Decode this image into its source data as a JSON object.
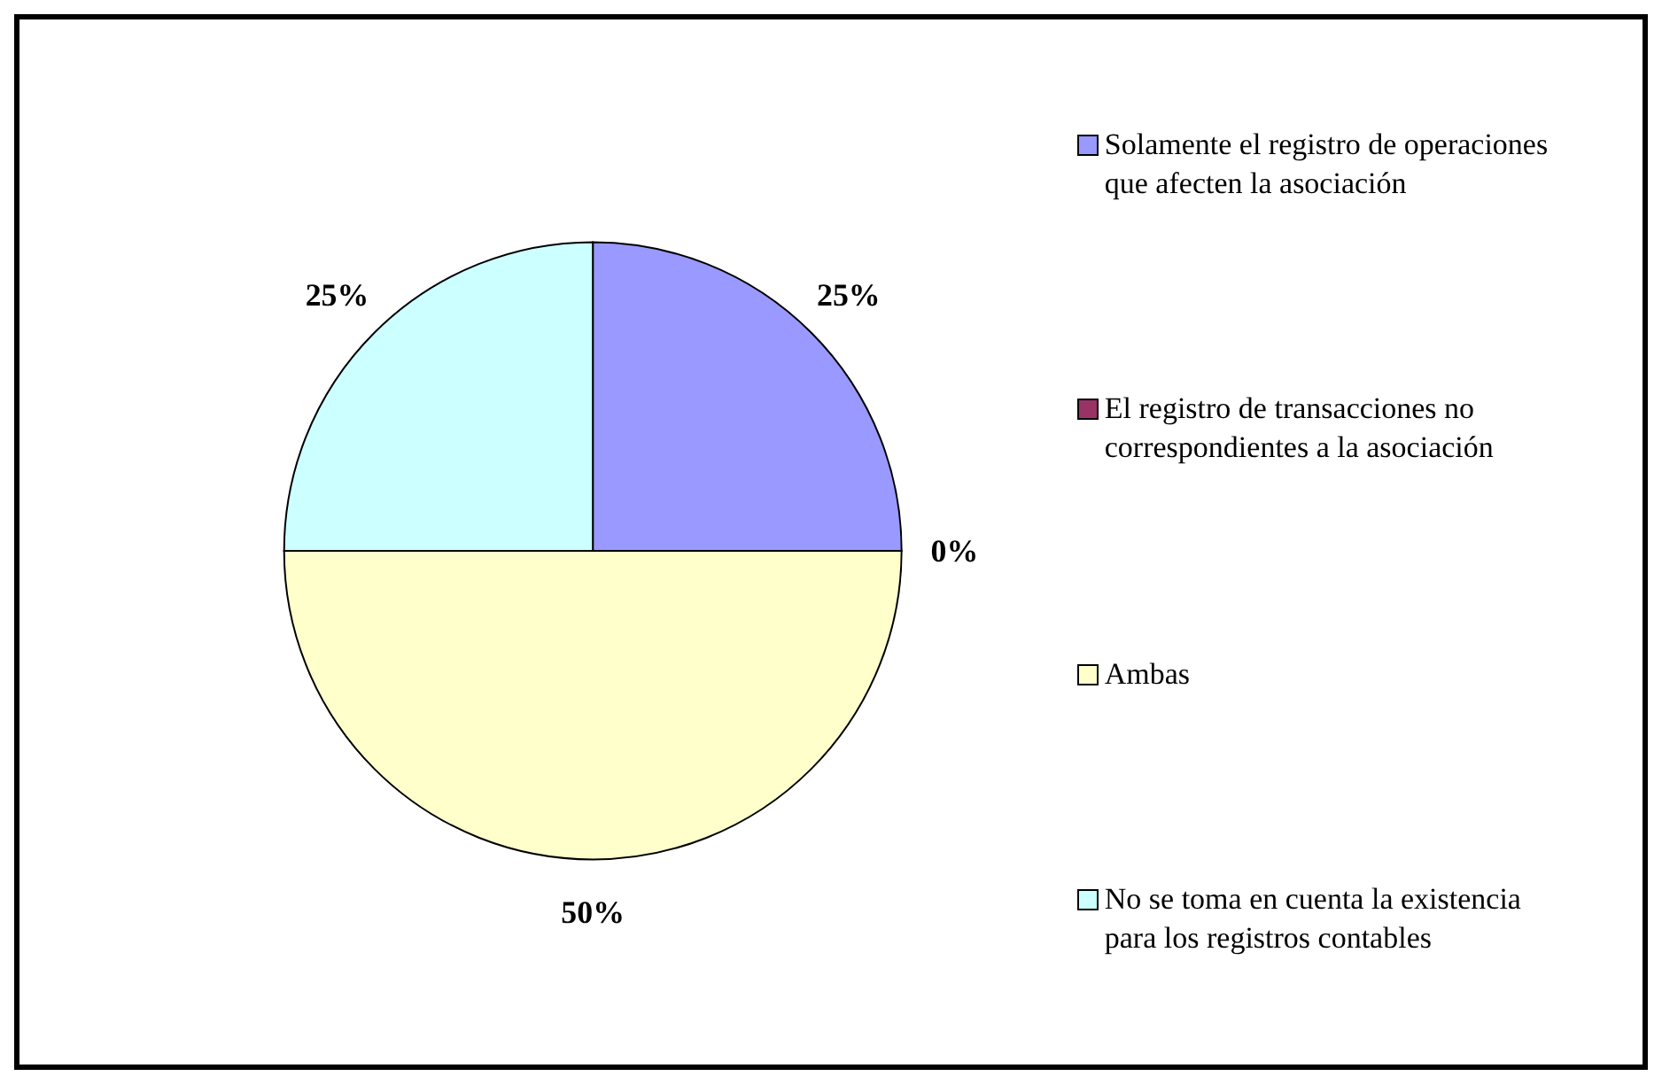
{
  "chart_data": {
    "type": "pie",
    "categories": [
      "Solamente el registro de operaciones que afecten la asociación",
      "El registro de transacciones no correspondientes a la asociación",
      "Ambas",
      "No se toma en cuenta la existencia para los registros contables"
    ],
    "values": [
      25,
      0,
      50,
      25
    ],
    "value_labels": [
      "25%",
      "0%",
      "50%",
      "25%"
    ],
    "colors": [
      "#9999ff",
      "#993366",
      "#ffffcc",
      "#ccffff"
    ],
    "legend": "right"
  }
}
